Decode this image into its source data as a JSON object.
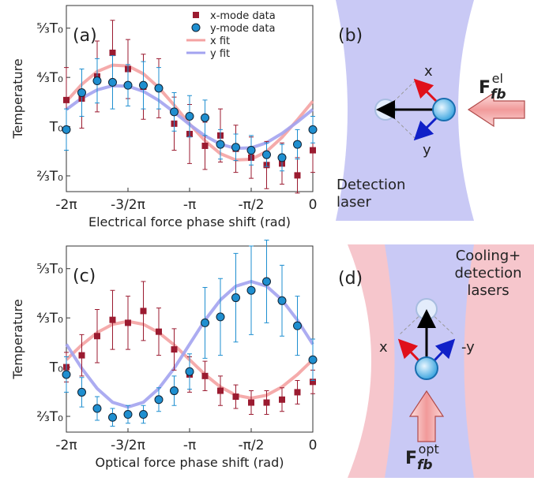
{
  "chart_data": [
    {
      "type": "scatter",
      "panel_label": "(a)",
      "ylabel": "Temperature",
      "xlabel": "Electrical force phase shift (rad)",
      "xlim": [
        -6.2832,
        0
      ],
      "ylim": [
        0.56,
        1.82
      ],
      "xticks": [
        {
          "value": -6.2832,
          "label": "-2π"
        },
        {
          "value": -4.7124,
          "label": "-3/2π"
        },
        {
          "value": -3.1416,
          "label": "-π"
        },
        {
          "value": -1.5708,
          "label": "-π/2"
        },
        0
      ],
      "yticks": [
        {
          "value": 0.6667,
          "label": "²⁄₃T₀"
        },
        {
          "value": 1,
          "label": "T₀"
        },
        {
          "value": 1.3333,
          "label": "⁴⁄₃T₀"
        },
        {
          "value": 1.6667,
          "label": "⁵⁄₃T₀"
        }
      ],
      "legend": "upper right",
      "x": [
        -6.2832,
        -5.8905,
        -5.4978,
        -5.1051,
        -4.7124,
        -4.3197,
        -3.927,
        -3.5343,
        -3.1416,
        -2.7489,
        -2.3562,
        -1.9635,
        -1.5708,
        -1.1781,
        -0.7854,
        -0.3927,
        0
      ],
      "series": [
        {
          "name": "x-mode data",
          "color": "#9b1b30",
          "marker": "square",
          "values": [
            1.18,
            1.19,
            1.34,
            1.5,
            1.39,
            1.27,
            1.26,
            1.02,
            0.95,
            0.87,
            0.94,
            0.85,
            0.79,
            0.74,
            0.75,
            0.67,
            0.84
          ],
          "errors": [
            0.22,
            0.2,
            0.24,
            0.22,
            0.2,
            0.22,
            0.2,
            0.18,
            0.2,
            0.16,
            0.18,
            0.16,
            0.14,
            0.16,
            0.14,
            0.12,
            0.15
          ]
        },
        {
          "name": "y-mode data",
          "color": "#1f8fd0",
          "marker": "circle",
          "values": [
            0.98,
            1.23,
            1.31,
            1.3,
            1.28,
            1.28,
            1.26,
            1.1,
            1.07,
            1.06,
            0.88,
            0.86,
            0.84,
            0.81,
            0.79,
            0.88,
            0.98
          ],
          "errors": [
            0.14,
            0.16,
            0.15,
            0.18,
            0.14,
            0.16,
            0.14,
            0.13,
            0.14,
            0.12,
            0.1,
            0.09,
            0.1,
            0.08,
            0.09,
            0.1,
            0.09
          ]
        },
        {
          "name": "x fit",
          "color": "#f4a2a2",
          "marker": "line",
          "values": [
            1.171,
            1.286,
            1.373,
            1.416,
            1.411,
            1.358,
            1.264,
            1.145,
            1.018,
            0.904,
            0.817,
            0.774,
            0.779,
            0.832,
            0.927,
            1.046,
            1.172
          ]
        },
        {
          "name": "y fit",
          "color": "#a3a3f0",
          "marker": "line",
          "values": [
            1.116,
            1.192,
            1.249,
            1.277,
            1.274,
            1.239,
            1.177,
            1.098,
            1.014,
            0.938,
            0.881,
            0.853,
            0.856,
            0.891,
            0.954,
            1.032,
            1.116
          ]
        }
      ]
    },
    {
      "type": "scatter",
      "panel_label": "(c)",
      "ylabel": "Temperature",
      "xlabel": "Optical force phase shift (rad)",
      "xlim": [
        -6.2832,
        0
      ],
      "ylim": [
        0.56,
        1.82
      ],
      "xticks": [
        {
          "value": -6.2832,
          "label": "-2π"
        },
        {
          "value": -4.7124,
          "label": "-3/2π"
        },
        {
          "value": -3.1416,
          "label": "-π"
        },
        {
          "value": -1.5708,
          "label": "-π/2"
        },
        0
      ],
      "yticks": [
        {
          "value": 0.6667,
          "label": "²⁄₃T₀"
        },
        {
          "value": 1,
          "label": "T₀"
        },
        {
          "value": 1.3333,
          "label": "⁴⁄₃T₀"
        },
        {
          "value": 1.6667,
          "label": "⁵⁄₃T₀"
        }
      ],
      "x": [
        -6.2832,
        -5.8905,
        -5.4978,
        -5.1051,
        -4.7124,
        -4.3197,
        -3.927,
        -3.5343,
        -3.1416,
        -2.7489,
        -2.3562,
        -1.9635,
        -1.5708,
        -1.1781,
        -0.7854,
        -0.3927,
        0
      ],
      "series": [
        {
          "color": "#9b1b30",
          "marker": "square",
          "values": [
            1.0,
            1.08,
            1.21,
            1.32,
            1.3,
            1.38,
            1.24,
            1.12,
            0.95,
            0.94,
            0.84,
            0.8,
            0.76,
            0.76,
            0.78,
            0.83,
            0.9
          ],
          "errors": [
            0.1,
            0.14,
            0.18,
            0.2,
            0.18,
            0.2,
            0.16,
            0.14,
            0.12,
            0.1,
            0.1,
            0.08,
            0.08,
            0.08,
            0.08,
            0.08,
            0.08
          ]
        },
        {
          "color": "#1f8fd0",
          "marker": "circle",
          "values": [
            0.95,
            0.83,
            0.72,
            0.66,
            0.68,
            0.68,
            0.78,
            0.84,
            0.97,
            1.3,
            1.34,
            1.47,
            1.52,
            1.58,
            1.45,
            1.28,
            1.05
          ],
          "errors": [
            0.12,
            0.1,
            0.08,
            0.06,
            0.06,
            0.06,
            0.08,
            0.1,
            0.12,
            0.24,
            0.26,
            0.3,
            0.3,
            0.28,
            0.24,
            0.2,
            0.14
          ]
        },
        {
          "color": "#f4a2a2",
          "marker": "line",
          "values": [
            1.05,
            1.15,
            1.234,
            1.29,
            1.31,
            1.29,
            1.234,
            1.15,
            1.05,
            0.95,
            0.866,
            0.81,
            0.79,
            0.81,
            0.866,
            0.95,
            1.05
          ]
        },
        {
          "color": "#a3a3f0",
          "marker": "line",
          "values": [
            1.155,
            0.992,
            0.855,
            0.762,
            0.73,
            0.762,
            0.855,
            0.992,
            1.155,
            1.318,
            1.455,
            1.548,
            1.58,
            1.548,
            1.455,
            1.318,
            1.155
          ]
        }
      ]
    }
  ],
  "diagram_b": {
    "panel_label": "(b)",
    "x_label": "x",
    "y_label": "y",
    "force": "F",
    "force_sub": "fb",
    "force_sup": "el",
    "laser_label": [
      "Detection",
      "laser"
    ]
  },
  "diagram_d": {
    "panel_label": "(d)",
    "x_label": "x",
    "y_label": "-y",
    "force": "F",
    "force_sub": "fb",
    "force_sup": "opt",
    "laser_label": [
      "Cooling+",
      "detection",
      "lasers"
    ]
  }
}
